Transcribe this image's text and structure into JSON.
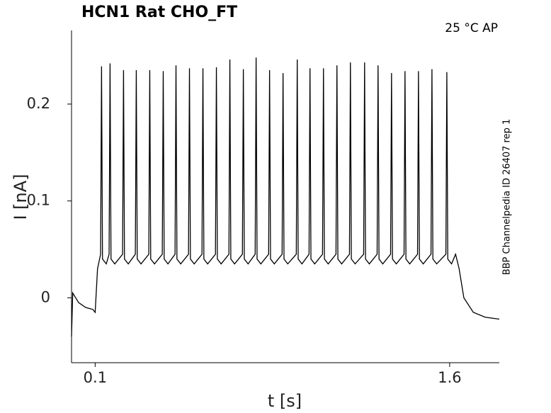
{
  "chart_data": {
    "type": "line",
    "title": "HCN1  Rat  CHO_FT",
    "annotation": "25 °C  AP",
    "side_label": "BBP Channelpedia ID 26407 rep 1",
    "x_label": "t [s]",
    "y_label": "I [nA]",
    "color": "#000000",
    "xlim": [
      0,
      1.81
    ],
    "ylim": [
      -0.067,
      0.276
    ],
    "xticks": [
      0.1,
      1.6
    ],
    "yticks": [
      0,
      0.1,
      0.2
    ],
    "x": [
      0,
      0.005,
      0.03,
      0.06,
      0.09,
      0.1,
      0.11,
      0.123,
      0.127,
      0.131,
      0.147,
      0.159,
      0.163,
      0.167,
      0.183,
      0.216,
      0.22,
      0.224,
      0.24,
      0.27,
      0.274,
      0.278,
      0.294,
      0.327,
      0.331,
      0.335,
      0.351,
      0.384,
      0.388,
      0.392,
      0.408,
      0.438,
      0.442,
      0.446,
      0.462,
      0.495,
      0.499,
      0.503,
      0.519,
      0.552,
      0.556,
      0.56,
      0.576,
      0.609,
      0.613,
      0.617,
      0.633,
      0.666,
      0.67,
      0.674,
      0.69,
      0.723,
      0.727,
      0.731,
      0.747,
      0.777,
      0.781,
      0.785,
      0.801,
      0.834,
      0.838,
      0.842,
      0.858,
      0.891,
      0.895,
      0.899,
      0.915,
      0.951,
      0.955,
      0.959,
      0.975,
      1.005,
      1.009,
      1.013,
      1.029,
      1.062,
      1.066,
      1.07,
      1.086,
      1.119,
      1.123,
      1.127,
      1.143,
      1.176,
      1.18,
      1.184,
      1.2,
      1.236,
      1.24,
      1.244,
      1.26,
      1.293,
      1.297,
      1.301,
      1.317,
      1.35,
      1.354,
      1.358,
      1.374,
      1.407,
      1.411,
      1.415,
      1.431,
      1.464,
      1.468,
      1.472,
      1.488,
      1.521,
      1.525,
      1.529,
      1.545,
      1.584,
      1.588,
      1.592,
      1.608,
      1.625,
      1.64,
      1.66,
      1.7,
      1.75,
      1.81
    ],
    "values": [
      -0.04,
      0.005,
      -0.005,
      -0.01,
      -0.012,
      -0.015,
      0.03,
      0.045,
      0.239,
      0.04,
      0.035,
      0.045,
      0.242,
      0.04,
      0.035,
      0.045,
      0.235,
      0.04,
      0.035,
      0.045,
      0.235,
      0.04,
      0.035,
      0.045,
      0.235,
      0.04,
      0.035,
      0.045,
      0.234,
      0.04,
      0.035,
      0.045,
      0.24,
      0.04,
      0.035,
      0.045,
      0.237,
      0.04,
      0.035,
      0.045,
      0.237,
      0.04,
      0.035,
      0.045,
      0.238,
      0.04,
      0.035,
      0.045,
      0.246,
      0.04,
      0.035,
      0.045,
      0.236,
      0.04,
      0.035,
      0.045,
      0.248,
      0.04,
      0.035,
      0.045,
      0.235,
      0.04,
      0.035,
      0.045,
      0.232,
      0.04,
      0.035,
      0.045,
      0.246,
      0.04,
      0.035,
      0.045,
      0.237,
      0.04,
      0.035,
      0.045,
      0.237,
      0.04,
      0.035,
      0.045,
      0.24,
      0.04,
      0.035,
      0.045,
      0.243,
      0.04,
      0.035,
      0.045,
      0.243,
      0.04,
      0.035,
      0.045,
      0.24,
      0.04,
      0.035,
      0.045,
      0.232,
      0.04,
      0.035,
      0.045,
      0.234,
      0.04,
      0.035,
      0.045,
      0.234,
      0.04,
      0.035,
      0.045,
      0.236,
      0.04,
      0.035,
      0.045,
      0.233,
      0.04,
      0.035,
      0.045,
      0.03,
      0.0,
      -0.015,
      -0.02,
      -0.022
    ]
  }
}
